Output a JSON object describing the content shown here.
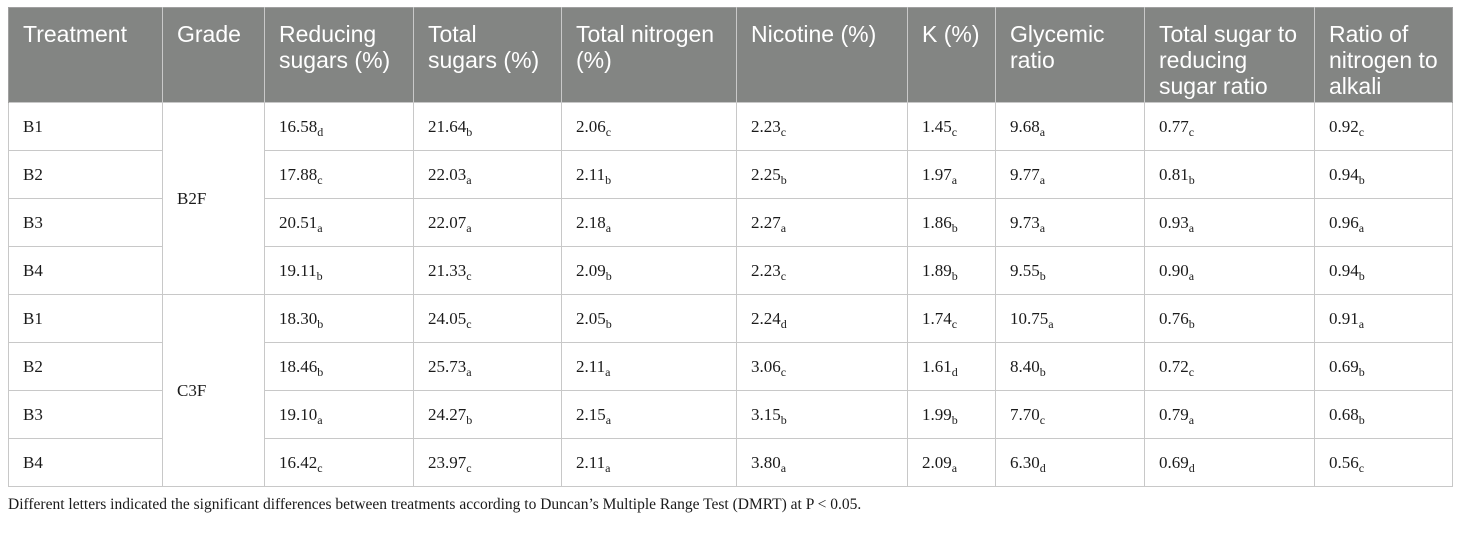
{
  "table": {
    "headers": [
      "Treatment",
      "Grade",
      "Reducing sugars (%)",
      "Total sugars (%)",
      "Total nitrogen (%)",
      "Nicotine (%)",
      "K (%)",
      "Glycemic ratio",
      "Total sugar to reducing sugar ratio",
      "Ratio of nitrogen to alkali"
    ],
    "groups": [
      {
        "grade": "B2F",
        "rows": [
          {
            "treatment": "B1",
            "cells": [
              [
                "16.58",
                "d"
              ],
              [
                "21.64",
                "b"
              ],
              [
                "2.06",
                "c"
              ],
              [
                "2.23",
                "c"
              ],
              [
                "1.45",
                "c"
              ],
              [
                "9.68",
                "a"
              ],
              [
                "0.77",
                "c"
              ],
              [
                "0.92",
                "c"
              ]
            ]
          },
          {
            "treatment": "B2",
            "cells": [
              [
                "17.88",
                "c"
              ],
              [
                "22.03",
                "a"
              ],
              [
                "2.11",
                "b"
              ],
              [
                "2.25",
                "b"
              ],
              [
                "1.97",
                "a"
              ],
              [
                "9.77",
                "a"
              ],
              [
                "0.81",
                "b"
              ],
              [
                "0.94",
                "b"
              ]
            ]
          },
          {
            "treatment": "B3",
            "cells": [
              [
                "20.51",
                "a"
              ],
              [
                "22.07",
                "a"
              ],
              [
                "2.18",
                "a"
              ],
              [
                "2.27",
                "a"
              ],
              [
                "1.86",
                "b"
              ],
              [
                "9.73",
                "a"
              ],
              [
                "0.93",
                "a"
              ],
              [
                "0.96",
                "a"
              ]
            ]
          },
          {
            "treatment": "B4",
            "cells": [
              [
                "19.11",
                "b"
              ],
              [
                "21.33",
                "c"
              ],
              [
                "2.09",
                "b"
              ],
              [
                "2.23",
                "c"
              ],
              [
                "1.89",
                "b"
              ],
              [
                "9.55",
                "b"
              ],
              [
                "0.90",
                "a"
              ],
              [
                "0.94",
                "b"
              ]
            ]
          }
        ]
      },
      {
        "grade": "C3F",
        "rows": [
          {
            "treatment": "B1",
            "cells": [
              [
                "18.30",
                "b"
              ],
              [
                "24.05",
                "c"
              ],
              [
                "2.05",
                "b"
              ],
              [
                "2.24",
                "d"
              ],
              [
                "1.74",
                "c"
              ],
              [
                "10.75",
                "a"
              ],
              [
                "0.76",
                "b"
              ],
              [
                "0.91",
                "a"
              ]
            ]
          },
          {
            "treatment": "B2",
            "cells": [
              [
                "18.46",
                "b"
              ],
              [
                "25.73",
                "a"
              ],
              [
                "2.11",
                "a"
              ],
              [
                "3.06",
                "c"
              ],
              [
                "1.61",
                "d"
              ],
              [
                "8.40",
                "b"
              ],
              [
                "0.72",
                "c"
              ],
              [
                "0.69",
                "b"
              ]
            ]
          },
          {
            "treatment": "B3",
            "cells": [
              [
                "19.10",
                "a"
              ],
              [
                "24.27",
                "b"
              ],
              [
                "2.15",
                "a"
              ],
              [
                "3.15",
                "b"
              ],
              [
                "1.99",
                "b"
              ],
              [
                "7.70",
                "c"
              ],
              [
                "0.79",
                "a"
              ],
              [
                "0.68",
                "b"
              ]
            ]
          },
          {
            "treatment": "B4",
            "cells": [
              [
                "16.42",
                "c"
              ],
              [
                "23.97",
                "c"
              ],
              [
                "2.11",
                "a"
              ],
              [
                "3.80",
                "a"
              ],
              [
                "2.09",
                "a"
              ],
              [
                "6.30",
                "d"
              ],
              [
                "0.69",
                "d"
              ],
              [
                "0.56",
                "c"
              ]
            ]
          }
        ]
      }
    ]
  },
  "footnote": "Different letters indicated the significant differences between treatments according to Duncan’s Multiple Range Test (DMRT) at P < 0.05.",
  "colors": {
    "header_bg": "#838583",
    "header_text": "#ffffff",
    "border": "#c8c8c8"
  }
}
